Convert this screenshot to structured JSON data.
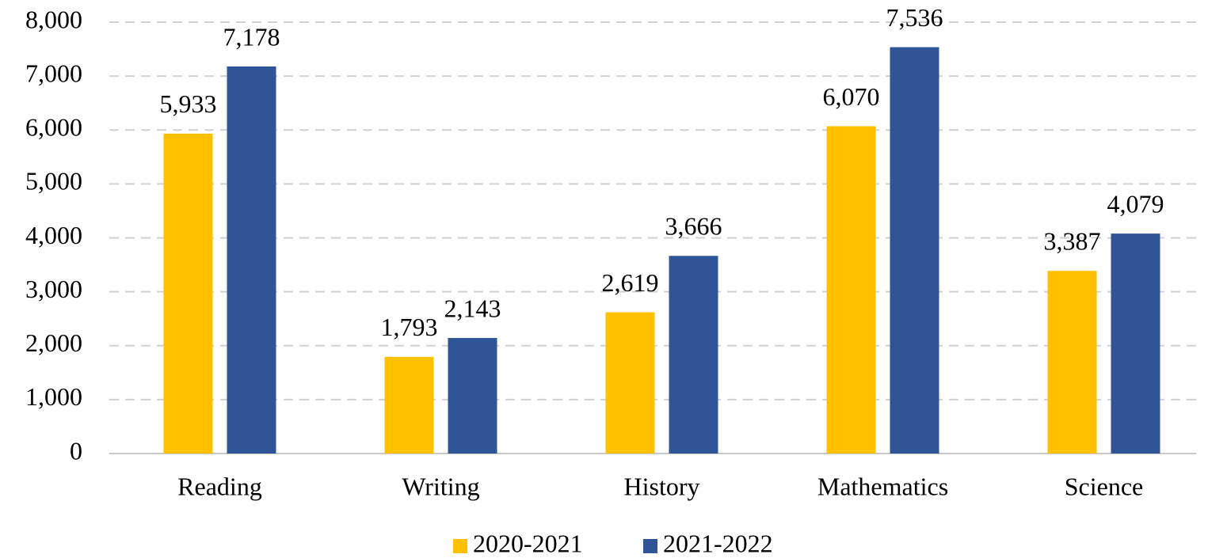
{
  "chart_data": {
    "type": "bar",
    "categories": [
      "Reading",
      "Writing",
      "History",
      "Mathematics",
      "Science"
    ],
    "series": [
      {
        "name": "2020-2021",
        "color": "#ffc000",
        "values": [
          5933,
          1793,
          2619,
          6070,
          3387
        ],
        "value_labels": [
          "5,933",
          "1,793",
          "2,619",
          "6,070",
          "3,387"
        ]
      },
      {
        "name": "2021-2022",
        "color": "#2f5597",
        "values": [
          7178,
          2143,
          3666,
          7536,
          4079
        ],
        "value_labels": [
          "7,178",
          "2,143",
          "3,666",
          "7,536",
          "4,079"
        ]
      }
    ],
    "ylim": [
      0,
      8000
    ],
    "yticks": [
      0,
      {
        "value": 1000,
        "label": "1,000"
      },
      {
        "value": 2000,
        "label": "2,000"
      },
      {
        "value": 3000,
        "label": "3,000"
      },
      {
        "value": 4000,
        "label": "4,000"
      },
      {
        "value": 5000,
        "label": "5,000"
      },
      {
        "value": 6000,
        "label": "6,000"
      },
      {
        "value": 7000,
        "label": "7,000"
      },
      {
        "value": 8000,
        "label": "8,000"
      }
    ],
    "grid": true,
    "legend": "bottom"
  }
}
